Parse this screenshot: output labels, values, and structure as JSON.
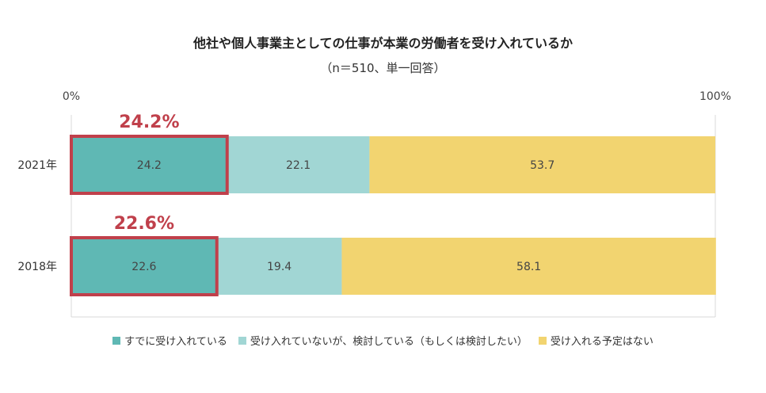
{
  "title": "他社や個人事業主としての仕事が本業の労働者を受け入れているか",
  "subtitle": "（n＝510、単一回答）",
  "chart_data": {
    "type": "bar",
    "orientation": "horizontal-stacked-100",
    "categories": [
      "2021年",
      "2018年"
    ],
    "series": [
      {
        "name": "すでに受け入れている",
        "color": "#5fb8b4",
        "values": [
          24.2,
          22.6
        ]
      },
      {
        "name": "受け入れていないが、検討している（もしくは検討したい）",
        "color": "#a1d6d4",
        "values": [
          22.1,
          19.4
        ]
      },
      {
        "name": "受け入れる予定はない",
        "color": "#f2d470",
        "values": [
          53.7,
          58.1
        ]
      }
    ],
    "data_labels": [
      [
        "24.2",
        "22.1",
        "53.7"
      ],
      [
        "22.6",
        "19.4",
        "58.1"
      ]
    ],
    "highlight": {
      "series_index": 0,
      "labels": [
        "24.2%",
        "22.6%"
      ],
      "color": "#c0404b"
    },
    "xlim": [
      0,
      100
    ],
    "x_tick_labels": [
      "0%",
      "100%"
    ],
    "legend_position": "bottom",
    "grid": false
  }
}
